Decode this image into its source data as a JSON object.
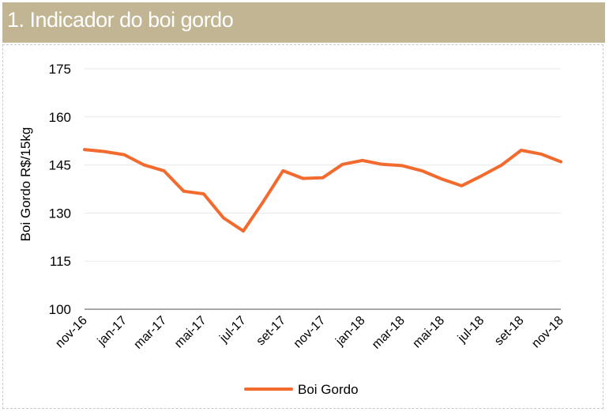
{
  "header": {
    "title": "1. Indicador do boi gordo"
  },
  "colors": {
    "header_bg": "#c1b593",
    "series": "#f26a2e",
    "grid": "#e8e8e8",
    "axis": "#8c8c8c"
  },
  "chart_data": {
    "type": "line",
    "title": "1. Indicador do boi gordo",
    "ylabel": "Boi Gordo R$/15kg",
    "xlabel": "",
    "ylim": [
      100,
      175
    ],
    "yticks": [
      100,
      115,
      130,
      145,
      160,
      175
    ],
    "grid": true,
    "legend_position": "bottom",
    "x": [
      "nov-16",
      "dez-16",
      "jan-17",
      "fev-17",
      "mar-17",
      "abr-17",
      "mai-17",
      "jun-17",
      "jul-17",
      "ago-17",
      "set-17",
      "out-17",
      "nov-17",
      "dez-17",
      "jan-18",
      "fev-18",
      "mar-18",
      "abr-18",
      "mai-18",
      "jun-18",
      "jul-18",
      "ago-18",
      "set-18",
      "out-18",
      "nov-18"
    ],
    "xtick_labels": [
      "nov-16",
      "jan-17",
      "mar-17",
      "mai-17",
      "jul-17",
      "set-17",
      "nov-17",
      "jan-18",
      "mar-18",
      "mai-18",
      "jul-18",
      "set-18",
      "nov-18"
    ],
    "series": [
      {
        "name": "Boi Gordo",
        "values": [
          149.8,
          149.2,
          148.2,
          145.0,
          143.2,
          136.8,
          136.0,
          128.5,
          124.4,
          133.5,
          143.2,
          140.8,
          141.0,
          145.2,
          146.4,
          145.2,
          144.8,
          143.2,
          140.6,
          138.5,
          141.6,
          144.9,
          149.6,
          148.4,
          146.0
        ]
      }
    ]
  }
}
